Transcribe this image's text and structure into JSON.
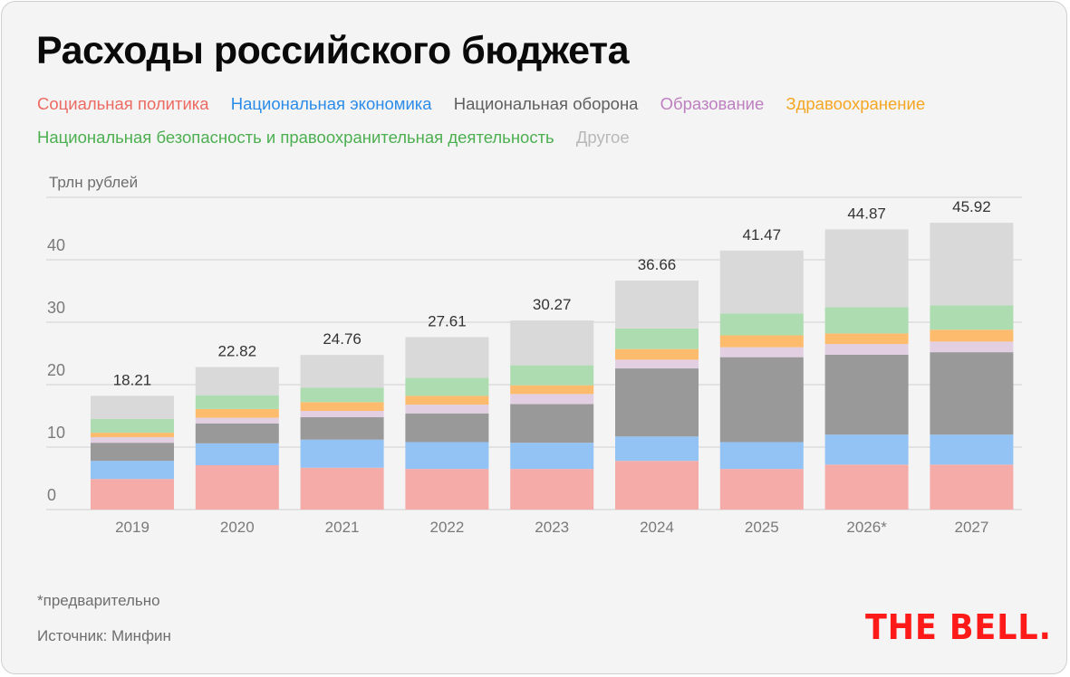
{
  "title": "Расходы российского бюджета",
  "legend": [
    {
      "label": "Социальная политика",
      "color": "#ec6a62",
      "fill": "#f5aca8"
    },
    {
      "label": "Национальная экономика",
      "color": "#2b8ce8",
      "fill": "#93c3f4"
    },
    {
      "label": "Национальная оборона",
      "color": "#5f5f5f",
      "fill": "#999999"
    },
    {
      "label": "Образование",
      "color": "#bd7fc0",
      "fill": "#e2cfe2"
    },
    {
      "label": "Здравоохранение",
      "color": "#f5a623",
      "fill": "#fdbb6e"
    },
    {
      "label": "Национальная безопасность и правоохранительная деятельность",
      "color": "#4caf50",
      "fill": "#acdcb0"
    },
    {
      "label": "Другое",
      "color": "#b8b8b8",
      "fill": "#d9d9d9"
    }
  ],
  "footnote": "*предварительно",
  "source": "Источник: Минфин",
  "logo": "THE BELL.",
  "chart_data": {
    "type": "bar",
    "stacked": true,
    "title": "Расходы российского бюджета",
    "ylabel": "Трлн рублей",
    "xlabel": "",
    "ylim": [
      0,
      50
    ],
    "yticks": [
      0,
      10,
      20,
      30,
      40
    ],
    "grid": true,
    "legend_position": "top",
    "categories": [
      "2019",
      "2020",
      "2021",
      "2022",
      "2023",
      "2024",
      "2025",
      "2026*",
      "2027"
    ],
    "totals": [
      "18.21",
      "22.82",
      "24.76",
      "27.61",
      "30.27",
      "36.66",
      "41.47",
      "44.87",
      "45.92"
    ],
    "series": [
      {
        "name": "Социальная политика",
        "values": [
          4.9,
          7.1,
          6.7,
          6.5,
          6.5,
          7.8,
          6.5,
          7.2,
          7.2
        ]
      },
      {
        "name": "Национальная экономика",
        "values": [
          2.9,
          3.5,
          4.5,
          4.3,
          4.2,
          3.9,
          4.3,
          4.8,
          4.8
        ]
      },
      {
        "name": "Национальная оборона",
        "values": [
          2.9,
          3.2,
          3.6,
          4.6,
          6.2,
          10.9,
          13.6,
          12.8,
          13.2
        ]
      },
      {
        "name": "Образование",
        "values": [
          0.9,
          0.9,
          1.0,
          1.4,
          1.6,
          1.4,
          1.6,
          1.7,
          1.7
        ]
      },
      {
        "name": "Здравоохранение",
        "values": [
          0.7,
          1.4,
          1.4,
          1.4,
          1.4,
          1.7,
          1.9,
          1.7,
          1.9
        ]
      },
      {
        "name": "Национальная безопасность и правоохранительная деятельность",
        "values": [
          2.2,
          2.2,
          2.3,
          2.9,
          3.2,
          3.3,
          3.5,
          4.2,
          3.9
        ]
      },
      {
        "name": "Другое",
        "values": [
          3.71,
          4.52,
          5.26,
          6.51,
          7.17,
          7.66,
          10.07,
          12.47,
          13.22
        ]
      }
    ]
  }
}
